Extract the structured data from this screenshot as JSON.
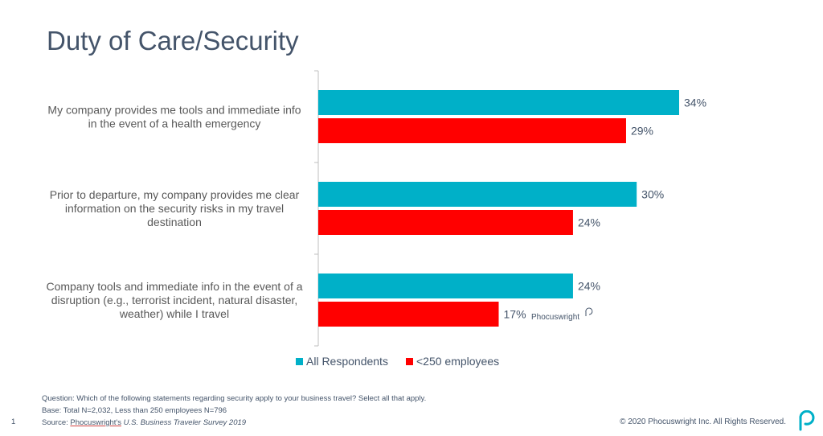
{
  "title": "Duty of Care/Security",
  "chart_data": {
    "type": "bar",
    "orientation": "horizontal",
    "categories": [
      [
        "My company provides me tools and immediate info",
        "in the event of a health emergency"
      ],
      [
        "Prior to departure, my company provides me clear",
        "information on the security risks in my travel",
        "destination"
      ],
      [
        "Company tools and immediate info in the event of a",
        "disruption (e.g., terrorist incident, natural disaster,",
        "weather) while I travel"
      ]
    ],
    "series": [
      {
        "name": "All Respondents",
        "values": [
          34,
          30,
          24
        ],
        "labels": [
          "34%",
          "30%",
          "24%"
        ],
        "color": "#00b0c8"
      },
      {
        "name": "<250 employees",
        "values": [
          29,
          24,
          17
        ],
        "labels": [
          "29%",
          "24%",
          "17%"
        ],
        "color": "#ff0000"
      }
    ],
    "xlim": [
      0,
      40
    ],
    "grid": false,
    "legend_position": "bottom"
  },
  "watermark": "Phocuswright",
  "footer": {
    "question": "Question: Which of the following statements regarding security apply to your business travel? Select all that apply.",
    "base": "Base: Total N=2,032, Less than 250 employees N=796",
    "source_prefix": "Source: ",
    "source_brand": "Phocuswright's",
    "source_title": " U.S. Business Traveler Survey 2019",
    "page_number": "1",
    "copyright": "© 2020 Phocuswright Inc. All Rights Reserved."
  },
  "logo_icon": "phocuswright-p-logo-icon"
}
